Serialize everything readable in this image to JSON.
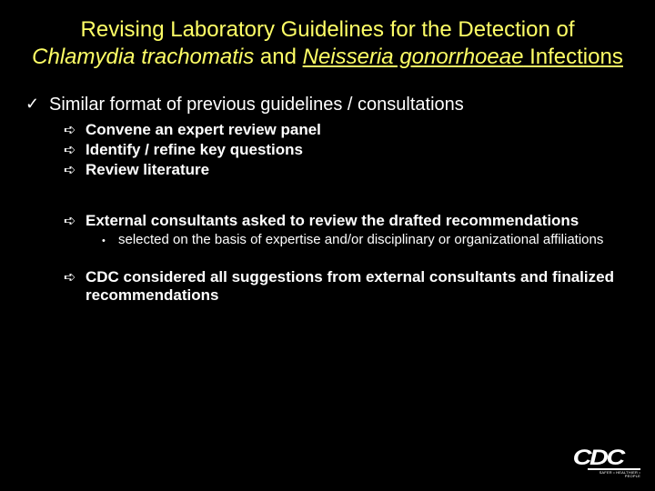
{
  "colors": {
    "background": "#000000",
    "title": "#ffff66",
    "body_text": "#ffffff"
  },
  "fonts": {
    "title_family": "Comic Sans MS",
    "body_family": "Arial",
    "title_size_pt": 24,
    "level1_size_pt": 20,
    "level2_size_pt": 17,
    "level3_size_pt": 15
  },
  "title": {
    "line1": "Revising Laboratory Guidelines for the Detection of",
    "species1": "Chlamydia trachomatis",
    "conjunction": " and ",
    "species2_italic": "Neisseria gonorrhoeae",
    "trailing": " Infections"
  },
  "bullets": {
    "check": "✓",
    "arrow": "➪",
    "dot": "•"
  },
  "content": {
    "l1_a": "Similar format of previous guidelines / consultations",
    "l2_a": "Convene an expert review panel",
    "l2_b": "Identify / refine key questions",
    "l2_c": "Review literature",
    "l2_d": "External consultants asked to review the drafted recommendations",
    "l3_a": "selected on the basis of expertise and/or disciplinary or organizational affiliations",
    "l2_e": "CDC considered all suggestions from external consultants and finalized recommendations"
  },
  "logo": {
    "text": "CDC",
    "sub": "SAFER • HEALTHIER • PEOPLE"
  }
}
